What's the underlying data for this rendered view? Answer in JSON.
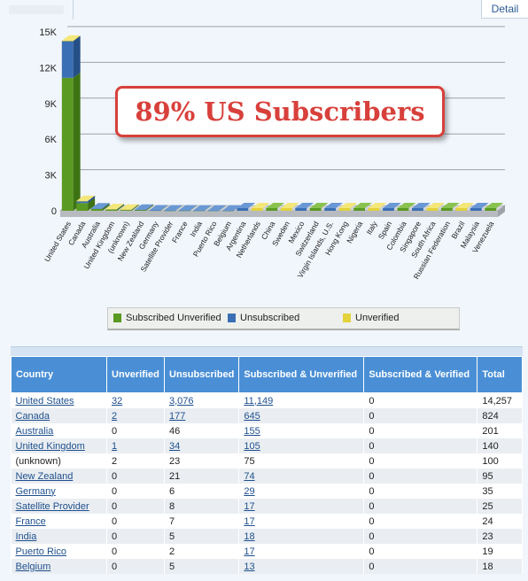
{
  "detail_tab": "Detail",
  "callout": "89% US Subscribers",
  "legend": [
    {
      "label": "Subscribed Unverified",
      "color": "#5a9a22"
    },
    {
      "label": "Unsubscribed",
      "color": "#3a6fb5"
    },
    {
      "label": "Unverified",
      "color": "#e3d23a"
    }
  ],
  "chart_data": {
    "type": "bar",
    "stacked": true,
    "three_d": true,
    "yticks": [
      "0",
      "3K",
      "6K",
      "9K",
      "12K",
      "15K"
    ],
    "ylim": [
      0,
      15000
    ],
    "categories": [
      "United States",
      "Canada",
      "Australia",
      "United Kingdom",
      "(unknown)",
      "New Zealand",
      "Germany",
      "Satellite Provider",
      "France",
      "India",
      "Puerto Rico",
      "Belgium",
      "Argentina",
      "Netherlands",
      "China",
      "Sweden",
      "Mexico",
      "Switzerland",
      "Virgin Islands, U.S.",
      "Hong Kong",
      "Nigeria",
      "Italy",
      "Spain",
      "Colombia",
      "Singapore",
      "South Africa",
      "Russian Federation",
      "Brazil",
      "Malaysia",
      "Venezuela"
    ],
    "series": [
      {
        "name": "Subscribed Unverified",
        "color": "#5a9a22",
        "values": [
          11149,
          645,
          155,
          105,
          75,
          74,
          29,
          17,
          17,
          18,
          17,
          13,
          0,
          0,
          0,
          0,
          0,
          0,
          0,
          0,
          0,
          0,
          0,
          0,
          0,
          0,
          0,
          0,
          0,
          0
        ]
      },
      {
        "name": "Unsubscribed",
        "color": "#3a6fb5",
        "values": [
          3076,
          177,
          46,
          34,
          23,
          21,
          6,
          8,
          7,
          5,
          2,
          5,
          0,
          0,
          0,
          0,
          0,
          0,
          0,
          0,
          0,
          0,
          0,
          0,
          0,
          0,
          0,
          0,
          0,
          0
        ]
      },
      {
        "name": "Unverified",
        "color": "#e3d23a",
        "values": [
          32,
          2,
          0,
          1,
          2,
          0,
          0,
          0,
          0,
          0,
          0,
          0,
          0,
          0,
          0,
          0,
          0,
          0,
          0,
          0,
          0,
          0,
          0,
          0,
          0,
          0,
          0,
          0,
          0,
          0
        ]
      }
    ],
    "grid": true
  },
  "table": {
    "headers": [
      "Country",
      "Unverified",
      "Unsubscribed",
      "Subscribed & Unverified",
      "Subscribed & Verified",
      "Total"
    ],
    "rows": [
      {
        "country": "United States",
        "unverified": "32",
        "unsubscribed": "3,076",
        "sub_unverified": "11,149",
        "sub_verified": "0",
        "total": "14,257",
        "links": [
          true,
          true,
          true,
          true
        ]
      },
      {
        "country": "Canada",
        "unverified": "2",
        "unsubscribed": "177",
        "sub_unverified": "645",
        "sub_verified": "0",
        "total": "824",
        "links": [
          true,
          true,
          true,
          true
        ]
      },
      {
        "country": "Australia",
        "unverified": "0",
        "unsubscribed": "46",
        "sub_unverified": "155",
        "sub_verified": "0",
        "total": "201",
        "links": [
          true,
          false,
          true,
          true
        ]
      },
      {
        "country": "United Kingdom",
        "unverified": "1",
        "unsubscribed": "34",
        "sub_unverified": "105",
        "sub_verified": "0",
        "total": "140",
        "links": [
          true,
          true,
          true,
          true
        ]
      },
      {
        "country": "(unknown)",
        "unverified": "2",
        "unsubscribed": "23",
        "sub_unverified": "75",
        "sub_verified": "0",
        "total": "100",
        "links": [
          false,
          false,
          false,
          false
        ]
      },
      {
        "country": "New Zealand",
        "unverified": "0",
        "unsubscribed": "21",
        "sub_unverified": "74",
        "sub_verified": "0",
        "total": "95",
        "links": [
          true,
          false,
          true,
          true
        ]
      },
      {
        "country": "Germany",
        "unverified": "0",
        "unsubscribed": "6",
        "sub_unverified": "29",
        "sub_verified": "0",
        "total": "35",
        "links": [
          true,
          false,
          true,
          true
        ]
      },
      {
        "country": "Satellite Provider",
        "unverified": "0",
        "unsubscribed": "8",
        "sub_unverified": "17",
        "sub_verified": "0",
        "total": "25",
        "links": [
          true,
          false,
          true,
          true
        ]
      },
      {
        "country": "France",
        "unverified": "0",
        "unsubscribed": "7",
        "sub_unverified": "17",
        "sub_verified": "0",
        "total": "24",
        "links": [
          true,
          false,
          true,
          true
        ]
      },
      {
        "country": "India",
        "unverified": "0",
        "unsubscribed": "5",
        "sub_unverified": "18",
        "sub_verified": "0",
        "total": "23",
        "links": [
          true,
          false,
          true,
          true
        ]
      },
      {
        "country": "Puerto Rico",
        "unverified": "0",
        "unsubscribed": "2",
        "sub_unverified": "17",
        "sub_verified": "0",
        "total": "19",
        "links": [
          true,
          false,
          true,
          true
        ]
      },
      {
        "country": "Belgium",
        "unverified": "0",
        "unsubscribed": "5",
        "sub_unverified": "13",
        "sub_verified": "0",
        "total": "18",
        "links": [
          true,
          false,
          true,
          true
        ]
      }
    ]
  }
}
